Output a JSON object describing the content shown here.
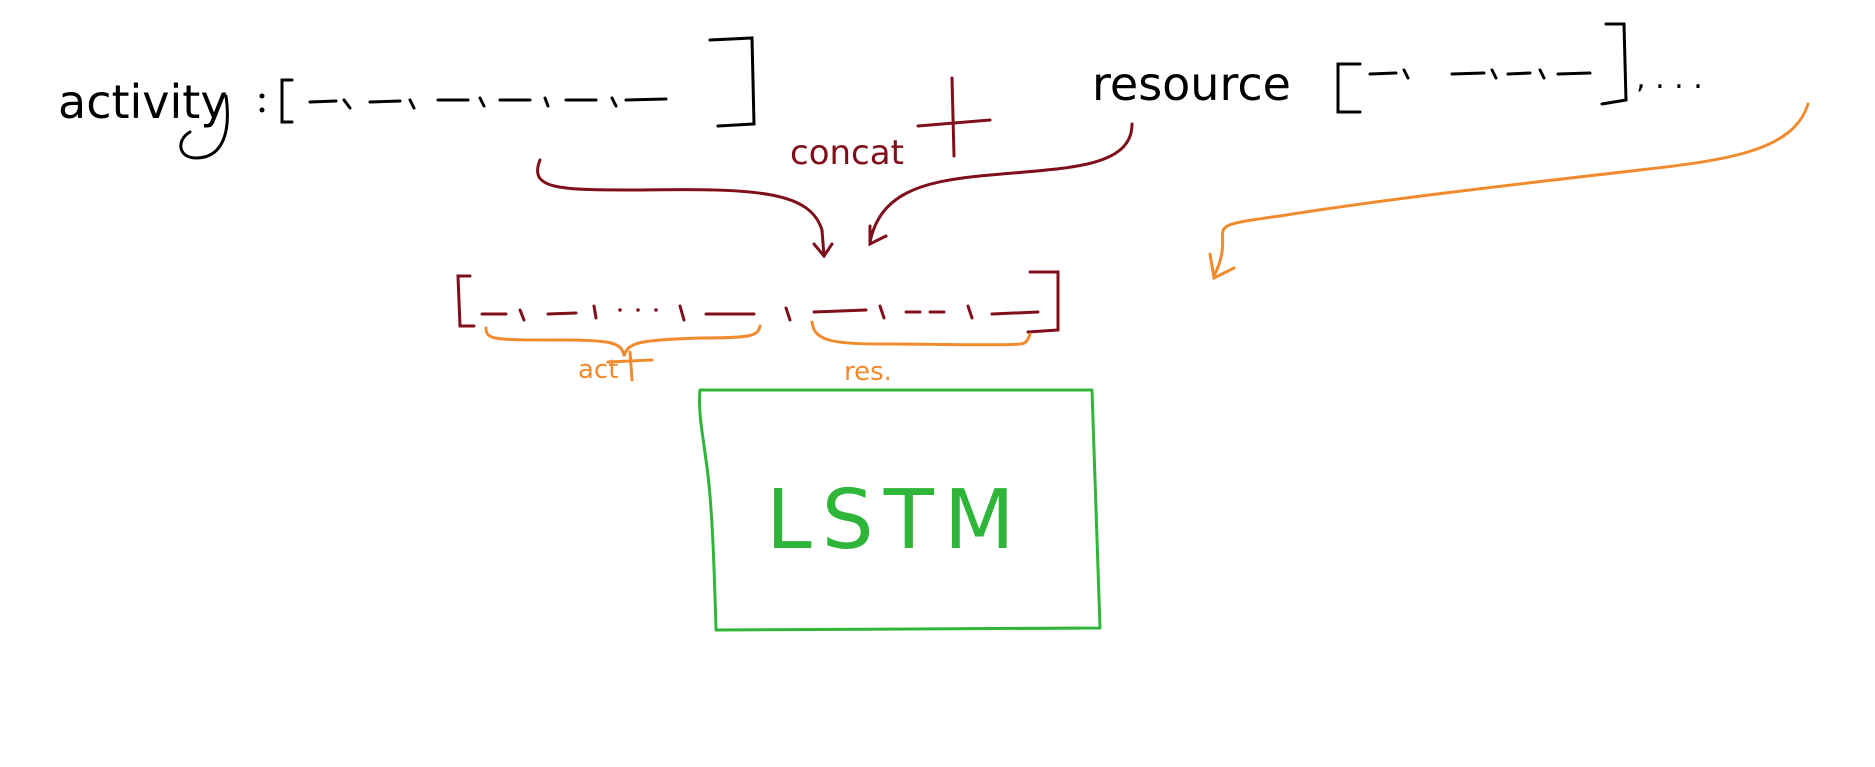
{
  "diagram": {
    "activity_label": "activity",
    "resource_label": "resource",
    "ellipsis": ", . . .",
    "concat_label": "concat",
    "act_label": "act",
    "res_label": "res.",
    "model_label": "LSTM",
    "colors": {
      "ink": "#000000",
      "concat": "#7f0f1a",
      "highlight": "#f28a2e",
      "model": "#2fb53a"
    }
  }
}
